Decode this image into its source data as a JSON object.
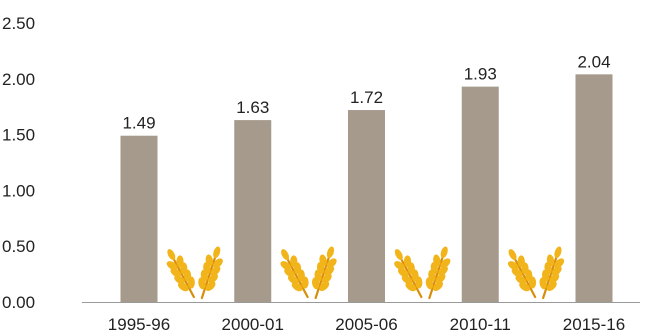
{
  "chart_data": {
    "type": "bar",
    "categories": [
      "1995-96",
      "2000-01",
      "2005-06",
      "2010-11",
      "2015-16"
    ],
    "values": [
      1.49,
      1.63,
      1.72,
      1.93,
      2.04
    ],
    "data_labels": [
      "1.49",
      "1.63",
      "1.72",
      "1.93",
      "2.04"
    ],
    "y_ticks": [
      "0.00",
      "0.50",
      "1.00",
      "1.50",
      "2.00",
      "2.50"
    ],
    "ylim": [
      0,
      2.5
    ],
    "grid": false,
    "legend": "none",
    "title": "",
    "xlabel": "",
    "ylabel": "",
    "colors": {
      "bar": "#a69a8d",
      "axis": "#9a9a9a",
      "wheat": "#f2b41b",
      "wheat_dark": "#d98e0a"
    },
    "decoration_icons": [
      "wheat-icon",
      "wheat-icon",
      "wheat-icon",
      "wheat-icon"
    ]
  }
}
